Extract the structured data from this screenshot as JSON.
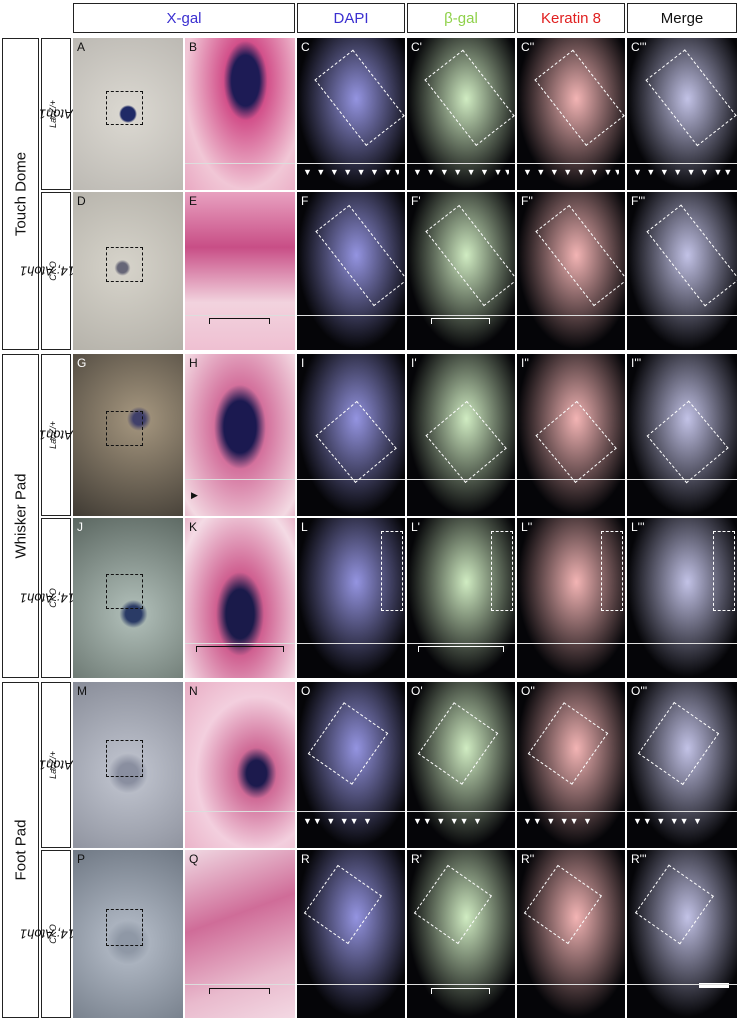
{
  "columns": [
    "X-gal",
    "DAPI",
    "β-gal",
    "Keratin 8",
    "Merge"
  ],
  "column_colors": [
    "#3a2fd0",
    "#3a2fd0",
    "#8fd14a",
    "#e02020",
    "#111111"
  ],
  "groups": [
    "Touch Dome",
    "Whisker Pad",
    "Foot Pad"
  ],
  "genotypes": {
    "het": {
      "gene": "Atoh1",
      "sup": "LacZ/+"
    },
    "cko": {
      "gene": "Krt14; Atoh1",
      "sup": "CKO"
    }
  },
  "panel_labels": [
    [
      "A",
      "B",
      "C",
      "C'",
      "C''",
      "C'''"
    ],
    [
      "D",
      "E",
      "F",
      "F'",
      "F''",
      "F'''"
    ],
    [
      "G",
      "H",
      "I",
      "I'",
      "I''",
      "I'''"
    ],
    [
      "J",
      "K",
      "L",
      "L'",
      "L''",
      "L'''"
    ],
    [
      "M",
      "N",
      "O",
      "O'",
      "O''",
      "O'''"
    ],
    [
      "P",
      "Q",
      "R",
      "R'",
      "R''",
      "R'''"
    ]
  ],
  "arrows": {
    "row1": "▼ ▼ ▼ ▼ ▼ ▼ ▼▼",
    "row5": "▼▼ ▼ ▼▼ ▼",
    "whisker": "▶"
  }
}
